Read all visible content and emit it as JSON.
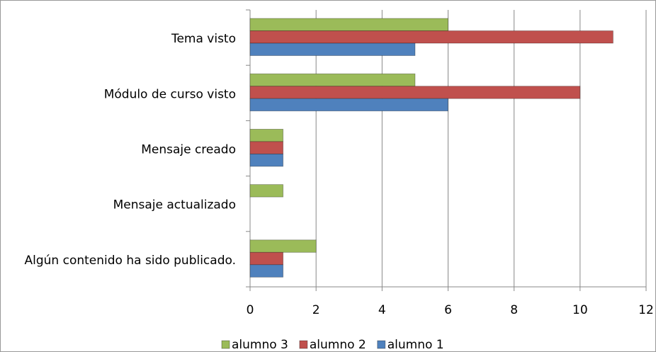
{
  "chart_data": {
    "type": "bar",
    "orientation": "horizontal",
    "categories": [
      "Tema visto",
      "Módulo de curso visto",
      "Mensaje creado",
      "Mensaje actualizado",
      "Algún contenido ha sido publicado."
    ],
    "series": [
      {
        "name": "alumno 3",
        "color": "#9bbb59",
        "values": [
          6,
          5,
          1,
          1,
          2
        ]
      },
      {
        "name": "alumno 2",
        "color": "#c0504d",
        "values": [
          11,
          10,
          1,
          0,
          1
        ]
      },
      {
        "name": "alumno 1",
        "color": "#4f81bd",
        "values": [
          5,
          6,
          1,
          0,
          1
        ]
      }
    ],
    "xlim": [
      0,
      12
    ],
    "xticks": [
      0,
      2,
      4,
      6,
      8,
      10,
      12
    ],
    "grid": true,
    "legend": "bottom"
  }
}
